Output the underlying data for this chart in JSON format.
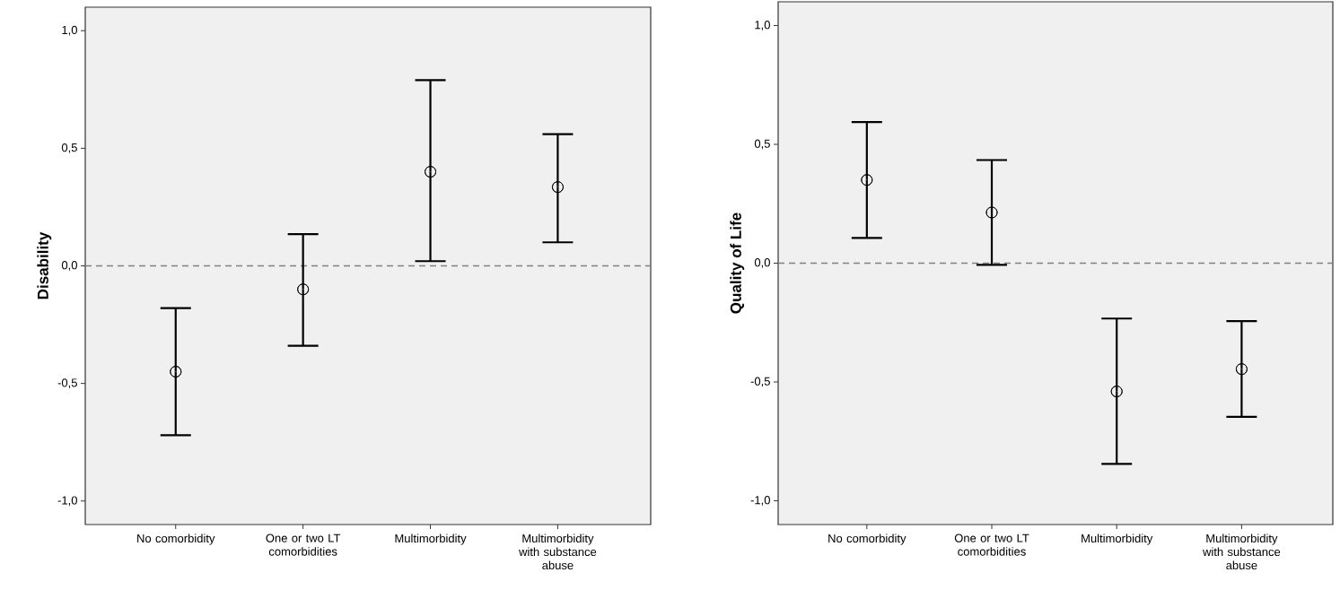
{
  "chart_data": [
    {
      "type": "scatter",
      "ylabel": "Disability",
      "categories": [
        "No comorbidity",
        "One or two LT comorbidities",
        "Multimorbidity",
        "Multimorbidity with substance abuse"
      ],
      "values": [
        -0.45,
        -0.1,
        0.4,
        0.335
      ],
      "errors": [
        [
          -0.72,
          -0.18
        ],
        [
          -0.34,
          0.135
        ],
        [
          0.02,
          0.79
        ],
        [
          0.1,
          0.56
        ]
      ],
      "color": "#000000",
      "marker": "circle",
      "ylim": [
        -1.1,
        1.1
      ],
      "yticks": [
        {
          "value": -1.0,
          "label": "-1,0"
        },
        {
          "value": -0.5,
          "label": "-0,5"
        },
        {
          "value": 0.0,
          "label": "0,0"
        },
        {
          "value": 0.5,
          "label": "0,5"
        },
        {
          "value": 1.0,
          "label": "1,0"
        }
      ],
      "ref_lines": [
        {
          "axis": "y",
          "value": 0,
          "color": "#808080",
          "line_style": "dashed"
        }
      ],
      "grid": false
    },
    {
      "type": "scatter",
      "ylabel": "Quality of Life",
      "categories": [
        "No comorbidity",
        "One or two LT comorbidities",
        "Multimorbidity",
        "Multimorbidity with substance abuse"
      ],
      "values": [
        0.35,
        0.213,
        -0.54,
        -0.446
      ],
      "errors": [
        [
          0.106,
          0.594
        ],
        [
          -0.007,
          0.434
        ],
        [
          -0.845,
          -0.233
        ],
        [
          -0.647,
          -0.244
        ]
      ],
      "color": "#000000",
      "marker": "circle",
      "ylim": [
        -1.1,
        1.1
      ],
      "yticks": [
        {
          "value": -1.0,
          "label": "-1,0"
        },
        {
          "value": -0.5,
          "label": "-0,5"
        },
        {
          "value": 0.0,
          "label": "0,0"
        },
        {
          "value": 0.5,
          "label": "0,5"
        },
        {
          "value": 1.0,
          "label": "1,0"
        }
      ],
      "ref_lines": [
        {
          "axis": "y",
          "value": 0,
          "color": "#808080",
          "line_style": "dashed"
        }
      ],
      "grid": false
    }
  ]
}
